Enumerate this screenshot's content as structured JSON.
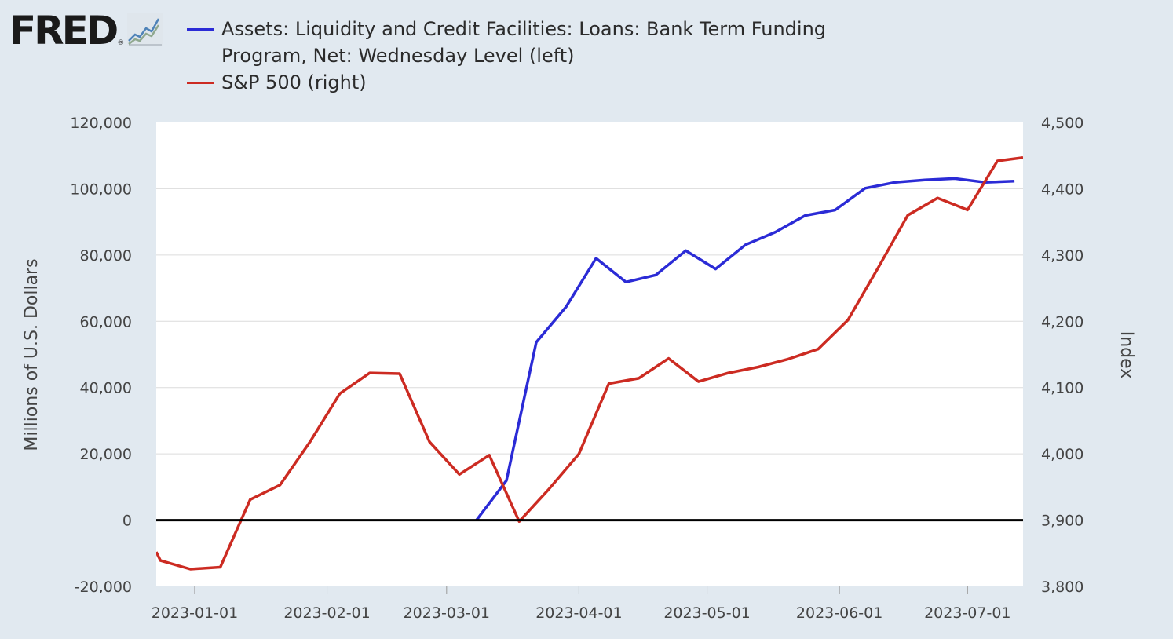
{
  "brand": {
    "logo_text": "FRED",
    "logo_mark": "®",
    "logo_icon": "line-graph-icon"
  },
  "chart_data": {
    "type": "line",
    "title": "",
    "xlabel": "",
    "ylabel_left": "Millions of U.S. Dollars",
    "ylabel_right": "Index",
    "xlim": [
      "2022-12-23",
      "2023-07-14"
    ],
    "ylim_left": [
      -20000,
      120000
    ],
    "ylim_right": [
      3800,
      4500
    ],
    "yticks_left": [
      "120,000",
      "100,000",
      "80,000",
      "60,000",
      "40,000",
      "20,000",
      "0",
      "-20,000"
    ],
    "yticks_right": [
      "4,500",
      "4,400",
      "4,300",
      "4,200",
      "4,100",
      "4,000",
      "3,900",
      "3,800"
    ],
    "xticks": [
      {
        "date": "2023-01-01",
        "label": "2023-01-01"
      },
      {
        "date": "2023-02-01",
        "label": "2023-02-01"
      },
      {
        "date": "2023-03-01",
        "label": "2023-03-01"
      },
      {
        "date": "2023-04-01",
        "label": "2023-04-01"
      },
      {
        "date": "2023-05-01",
        "label": "2023-05-01"
      },
      {
        "date": "2023-06-01",
        "label": "2023-06-01"
      },
      {
        "date": "2023-07-01",
        "label": "2023-07-01"
      }
    ],
    "grid": true,
    "zero_line": true,
    "legend_position": "top",
    "series": [
      {
        "name": "Assets: Liquidity and Credit Facilities: Loans: Bank Term Funding Program, Net: Wednesday Level (left)",
        "color": "#2b2bd6",
        "axis": "left",
        "x": [
          "2023-03-08",
          "2023-03-15",
          "2023-03-22",
          "2023-03-29",
          "2023-04-05",
          "2023-04-12",
          "2023-04-19",
          "2023-04-26",
          "2023-05-03",
          "2023-05-10",
          "2023-05-17",
          "2023-05-24",
          "2023-05-31",
          "2023-06-07",
          "2023-06-14",
          "2023-06-21",
          "2023-06-28",
          "2023-07-05",
          "2023-07-12"
        ],
        "values": [
          0,
          11943,
          53669,
          64403,
          79020,
          71837,
          73977,
          81310,
          75797,
          83098,
          86935,
          91939,
          93577,
          100159,
          101924,
          102635,
          103076,
          101949,
          102281
        ]
      },
      {
        "name": "S&P 500 (right)",
        "color": "#cc2b22",
        "axis": "right",
        "x": [
          "2022-12-23",
          "2022-12-24",
          "2022-12-31",
          "2023-01-07",
          "2023-01-14",
          "2023-01-21",
          "2023-01-28",
          "2023-02-04",
          "2023-02-11",
          "2023-02-18",
          "2023-02-25",
          "2023-03-04",
          "2023-03-11",
          "2023-03-18",
          "2023-03-25",
          "2023-04-01",
          "2023-04-08",
          "2023-04-15",
          "2023-04-22",
          "2023-04-29",
          "2023-05-06",
          "2023-05-13",
          "2023-05-20",
          "2023-05-27",
          "2023-06-03",
          "2023-06-10",
          "2023-06-17",
          "2023-06-24",
          "2023-07-01",
          "2023-07-08",
          "2023-07-14"
        ],
        "values": [
          3852,
          3839,
          3826,
          3829,
          3931,
          3953,
          4018,
          4091,
          4122,
          4121,
          4018,
          3969,
          3998,
          3898,
          3947,
          4000,
          4106,
          4114,
          4144,
          4109,
          4122,
          4131,
          4143,
          4158,
          4202,
          4280,
          4360,
          4386,
          4368,
          4442,
          4447
        ]
      }
    ]
  }
}
